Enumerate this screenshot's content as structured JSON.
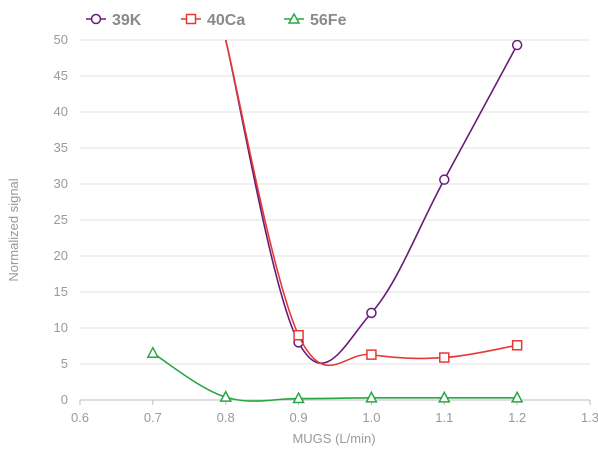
{
  "chart_data": {
    "type": "line",
    "xlabel": "MUGS (L/min)",
    "ylabel": "Normalized signal",
    "xlim": [
      0.6,
      1.3
    ],
    "ylim": [
      0,
      50
    ],
    "xticks": [
      "0.6",
      "0.7",
      "0.8",
      "0.9",
      "1.0",
      "1.1",
      "1.2",
      "1.3"
    ],
    "yticks": [
      "0",
      "5",
      "10",
      "15",
      "20",
      "25",
      "30",
      "35",
      "40",
      "45",
      "50"
    ],
    "grid": "horizontal",
    "legend_position": "top-left",
    "series": [
      {
        "name": "39K",
        "color": "#6a1b7a",
        "marker": "circle",
        "points": [
          [
            0.8,
            50.0
          ],
          [
            0.9,
            8.0
          ],
          [
            1.0,
            12.1
          ],
          [
            1.1,
            30.6
          ],
          [
            1.2,
            49.3
          ]
        ]
      },
      {
        "name": "40Ca",
        "color": "#e53935",
        "marker": "square",
        "points": [
          [
            0.8,
            50.0
          ],
          [
            0.9,
            9.0
          ],
          [
            1.0,
            6.3
          ],
          [
            1.1,
            5.9
          ],
          [
            1.2,
            7.6
          ]
        ]
      },
      {
        "name": "56Fe",
        "color": "#2aa745",
        "marker": "triangle",
        "points": [
          [
            0.7,
            6.5
          ],
          [
            0.8,
            0.4
          ],
          [
            0.9,
            0.2
          ],
          [
            1.0,
            0.3
          ],
          [
            1.1,
            0.3
          ],
          [
            1.2,
            0.3
          ]
        ]
      }
    ]
  }
}
